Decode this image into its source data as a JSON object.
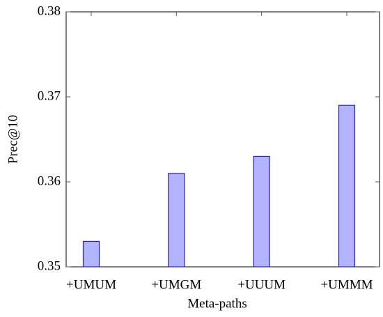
{
  "chart_data": {
    "type": "bar",
    "x_label": "Meta-paths",
    "y_label": "Prec@10",
    "categories": [
      "+UMUM",
      "+UMGM",
      "+UUUM",
      "+UMMM"
    ],
    "values": [
      0.353,
      0.361,
      0.363,
      0.369
    ],
    "color": "#b3b3ff",
    "edge_color": "#2222cc",
    "ylim": [
      0.35,
      0.38
    ],
    "yticks": [
      0.35,
      0.36,
      0.37,
      0.38
    ],
    "grid": false
  }
}
